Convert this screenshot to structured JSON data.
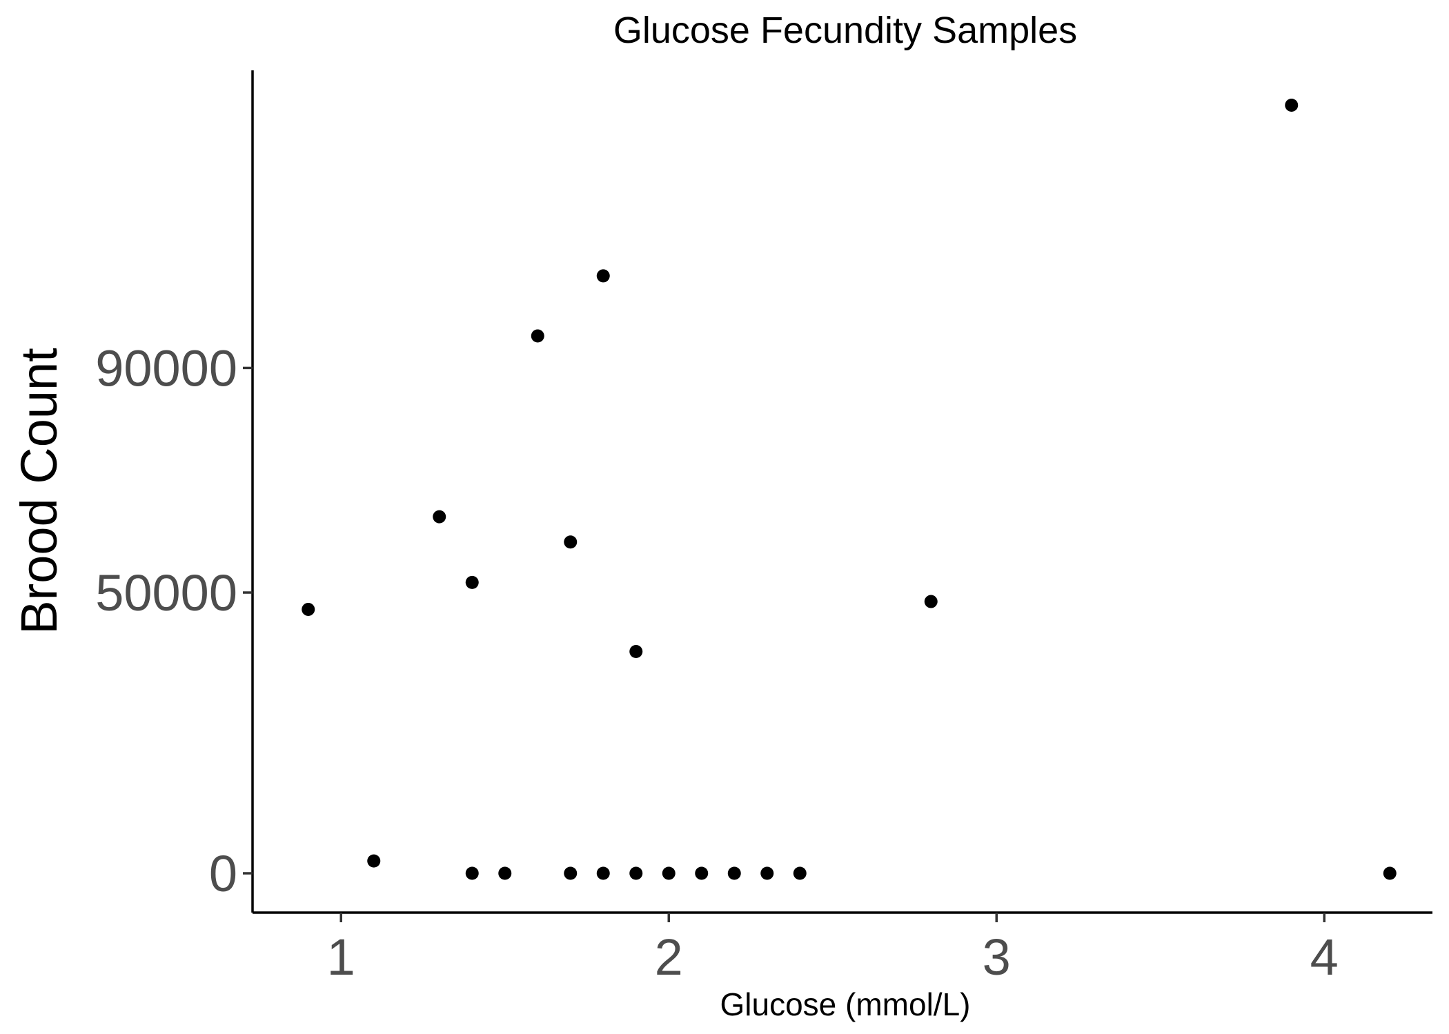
{
  "chart_data": {
    "type": "scatter",
    "title": "Glucose Fecundity Samples",
    "xlabel": "Glucose (mmol/L)",
    "ylabel": "Brood Count",
    "xlim": [
      0.73,
      4.33
    ],
    "ylim": [
      -7000,
      143000
    ],
    "x_ticks": [
      1,
      2,
      3,
      4
    ],
    "x_tick_labels": [
      "1",
      "2",
      "3",
      "4"
    ],
    "y_ticks": [
      0,
      50000,
      90000
    ],
    "y_tick_labels": [
      "0",
      "50000",
      "90000"
    ],
    "grid": false,
    "legend": "none",
    "point_color": "#000000",
    "series": [
      {
        "points": [
          {
            "x": 0.9,
            "y": 47000
          },
          {
            "x": 1.1,
            "y": 2200
          },
          {
            "x": 1.3,
            "y": 63500
          },
          {
            "x": 1.4,
            "y": 51800
          },
          {
            "x": 1.4,
            "y": 0
          },
          {
            "x": 1.5,
            "y": 0
          },
          {
            "x": 1.6,
            "y": 95700
          },
          {
            "x": 1.7,
            "y": 59000
          },
          {
            "x": 1.7,
            "y": 0
          },
          {
            "x": 1.8,
            "y": 106400
          },
          {
            "x": 1.8,
            "y": 0
          },
          {
            "x": 1.9,
            "y": 39500
          },
          {
            "x": 1.9,
            "y": 0
          },
          {
            "x": 2.0,
            "y": 0
          },
          {
            "x": 2.1,
            "y": 0
          },
          {
            "x": 2.2,
            "y": 0
          },
          {
            "x": 2.3,
            "y": 0
          },
          {
            "x": 2.4,
            "y": 0
          },
          {
            "x": 2.8,
            "y": 48400
          },
          {
            "x": 3.9,
            "y": 136800
          },
          {
            "x": 4.2,
            "y": 0
          }
        ]
      }
    ]
  }
}
